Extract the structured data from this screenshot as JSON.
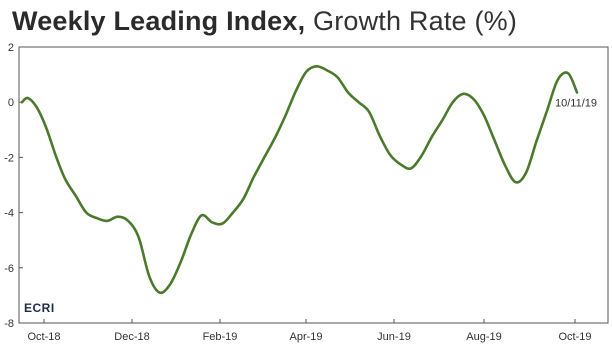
{
  "title": {
    "bold": "Weekly Leading Index,",
    "light": "Growth Rate (%)"
  },
  "logo": "ECRI",
  "chart_data": {
    "type": "line",
    "title": "Weekly Leading Index, Growth Rate (%)",
    "xlabel": "",
    "ylabel": "",
    "ylim": [
      -8,
      2
    ],
    "yticks": [
      "2",
      "0",
      "-2",
      "-4",
      "-6",
      "-8"
    ],
    "ytick_values": [
      2,
      0,
      -2,
      -4,
      -6,
      -8
    ],
    "xticks": [
      "Oct-18",
      "Dec-18",
      "Feb-19",
      "Apr-19",
      "Jun-19",
      "Aug-19",
      "Oct-19"
    ],
    "x_start": "2018-10-05",
    "x_end": "2019-10-11",
    "color": "#4a7a2c",
    "grid": false,
    "annotation": "10/11/19",
    "points": [
      [
        "2018-10-05",
        0.0
      ],
      [
        "2018-10-09",
        0.15
      ],
      [
        "2018-10-15",
        -0.2
      ],
      [
        "2018-10-21",
        -0.9
      ],
      [
        "2018-10-28",
        -2.0
      ],
      [
        "2018-11-03",
        -2.8
      ],
      [
        "2018-11-10",
        -3.4
      ],
      [
        "2018-11-17",
        -4.0
      ],
      [
        "2018-11-24",
        -4.2
      ],
      [
        "2018-12-01",
        -4.3
      ],
      [
        "2018-12-08",
        -4.15
      ],
      [
        "2018-12-15",
        -4.3
      ],
      [
        "2018-12-22",
        -4.9
      ],
      [
        "2018-12-29",
        -6.3
      ],
      [
        "2019-01-05",
        -6.9
      ],
      [
        "2019-01-12",
        -6.6
      ],
      [
        "2019-01-19",
        -5.8
      ],
      [
        "2019-01-26",
        -4.8
      ],
      [
        "2019-02-02",
        -4.1
      ],
      [
        "2019-02-09",
        -4.35
      ],
      [
        "2019-02-16",
        -4.4
      ],
      [
        "2019-02-23",
        -4.0
      ],
      [
        "2019-03-02",
        -3.5
      ],
      [
        "2019-03-09",
        -2.7
      ],
      [
        "2019-03-16",
        -2.0
      ],
      [
        "2019-03-23",
        -1.3
      ],
      [
        "2019-03-30",
        -0.5
      ],
      [
        "2019-04-06",
        0.4
      ],
      [
        "2019-04-13",
        1.1
      ],
      [
        "2019-04-20",
        1.3
      ],
      [
        "2019-04-27",
        1.15
      ],
      [
        "2019-05-04",
        0.9
      ],
      [
        "2019-05-11",
        0.35
      ],
      [
        "2019-05-18",
        0.0
      ],
      [
        "2019-05-25",
        -0.35
      ],
      [
        "2019-06-01",
        -1.2
      ],
      [
        "2019-06-08",
        -1.9
      ],
      [
        "2019-06-15",
        -2.25
      ],
      [
        "2019-06-22",
        -2.4
      ],
      [
        "2019-06-29",
        -1.95
      ],
      [
        "2019-07-06",
        -1.25
      ],
      [
        "2019-07-13",
        -0.65
      ],
      [
        "2019-07-20",
        0.0
      ],
      [
        "2019-07-27",
        0.3
      ],
      [
        "2019-08-03",
        0.1
      ],
      [
        "2019-08-10",
        -0.5
      ],
      [
        "2019-08-17",
        -1.4
      ],
      [
        "2019-08-24",
        -2.3
      ],
      [
        "2019-08-31",
        -2.9
      ],
      [
        "2019-09-07",
        -2.55
      ],
      [
        "2019-09-14",
        -1.4
      ],
      [
        "2019-09-21",
        -0.3
      ],
      [
        "2019-09-28",
        0.8
      ],
      [
        "2019-10-05",
        1.05
      ],
      [
        "2019-10-11",
        0.35
      ]
    ]
  }
}
